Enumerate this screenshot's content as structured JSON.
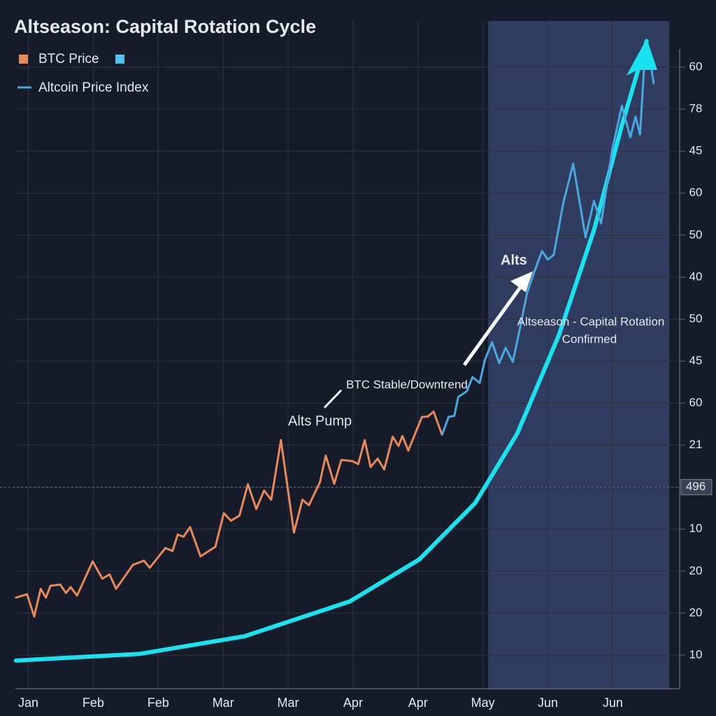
{
  "chart_data": {
    "type": "line",
    "title": "Altseason: Capital Rotation Cycle",
    "xlim": [
      -0.2,
      9.9
    ],
    "xticks": [
      {
        "value": 0,
        "label": "Jan"
      },
      {
        "value": 1,
        "label": "Feb"
      },
      {
        "value": 2,
        "label": "Feb"
      },
      {
        "value": 3,
        "label": "Mar"
      },
      {
        "value": 4,
        "label": "Mar"
      },
      {
        "value": 5,
        "label": "Apr"
      },
      {
        "value": 6,
        "label": "Apr"
      },
      {
        "value": 7,
        "label": "May"
      },
      {
        "value": 8,
        "label": "Jun"
      },
      {
        "value": 9,
        "label": "Jun"
      }
    ],
    "ylim": [
      -0.8,
      15.1
    ],
    "yticks": [
      {
        "value": 0,
        "label": "10"
      },
      {
        "value": 1,
        "label": "20"
      },
      {
        "value": 2,
        "label": "20"
      },
      {
        "value": 3,
        "label": "10"
      },
      {
        "value": 4,
        "label": "496"
      },
      {
        "value": 5,
        "label": "21"
      },
      {
        "value": 6,
        "label": "60"
      },
      {
        "value": 7,
        "label": "45"
      },
      {
        "value": 8,
        "label": "50"
      },
      {
        "value": 9,
        "label": "40"
      },
      {
        "value": 10,
        "label": "50"
      },
      {
        "value": 11,
        "label": "60"
      },
      {
        "value": 12,
        "label": "45"
      },
      {
        "value": 13,
        "label": "78"
      },
      {
        "value": 14,
        "label": "60"
      }
    ],
    "grid": true,
    "hline": 4,
    "highlight": {
      "x": [
        7.08,
        9.87
      ],
      "color": "#34426a"
    },
    "series": [
      {
        "name": "BTC Price",
        "color": "#e8895a",
        "x": [
          -0.19,
          -0.02,
          0.09,
          0.19,
          0.27,
          0.34,
          0.49,
          0.58,
          0.65,
          0.75,
          0.99,
          1.14,
          1.25,
          1.35,
          1.61,
          1.78,
          1.87,
          2.11,
          2.22,
          2.3,
          2.39,
          2.49,
          2.65,
          2.88,
          3.01,
          3.12,
          3.25,
          3.38,
          3.51,
          3.63,
          3.74,
          3.89,
          4.09,
          4.22,
          4.32,
          4.49,
          4.58,
          4.71,
          4.82,
          4.99,
          5.08,
          5.18,
          5.27,
          5.38,
          5.48,
          5.61,
          5.7,
          5.76,
          5.85,
          6.06,
          6.15,
          6.24,
          6.37
        ],
        "values": [
          1.37,
          1.45,
          0.92,
          1.58,
          1.37,
          1.65,
          1.68,
          1.48,
          1.62,
          1.42,
          2.23,
          1.82,
          1.92,
          1.58,
          2.15,
          2.25,
          2.08,
          2.55,
          2.48,
          2.87,
          2.82,
          3.05,
          2.35,
          2.58,
          3.38,
          3.2,
          3.32,
          4.07,
          3.48,
          3.92,
          3.7,
          5.12,
          2.92,
          3.7,
          3.57,
          4.12,
          4.75,
          4.08,
          4.65,
          4.62,
          4.55,
          5.12,
          4.48,
          4.68,
          4.42,
          5.2,
          4.98,
          5.22,
          4.87,
          5.67,
          5.68,
          5.8,
          5.25
        ]
      },
      {
        "name": "Altcoin Price Index",
        "color": "#4aa8e0",
        "x": [
          6.37,
          6.47,
          6.56,
          6.62,
          6.75,
          6.84,
          6.95,
          7.03,
          7.14,
          7.25,
          7.35,
          7.46,
          7.57,
          7.68,
          7.78,
          7.91,
          8.0,
          8.09,
          8.24,
          8.39,
          8.58,
          8.71,
          8.82,
          8.99,
          9.14,
          9.27,
          9.35,
          9.42,
          9.48,
          9.57,
          9.63
        ],
        "values": [
          5.25,
          5.67,
          5.7,
          6.15,
          6.28,
          6.62,
          6.48,
          7.03,
          7.45,
          6.95,
          7.32,
          6.98,
          7.78,
          8.62,
          9.08,
          9.62,
          9.42,
          9.53,
          10.78,
          11.7,
          9.95,
          10.82,
          10.28,
          12.03,
          13.08,
          12.33,
          12.82,
          12.4,
          13.95,
          14.2,
          13.62
        ]
      },
      {
        "color": "#19e3f0",
        "x": [
          -0.19,
          1.72,
          3.33,
          4.95,
          6.02,
          6.88,
          7.53,
          8.17,
          8.71,
          9.14,
          9.52
        ],
        "values": [
          -0.13,
          0.03,
          0.45,
          1.28,
          2.28,
          3.62,
          5.28,
          7.62,
          10.12,
          12.62,
          14.62
        ]
      }
    ],
    "annotations": [
      "Alts Pump",
      "BTC Stable/Downtrend",
      "Alts",
      "Altseason - Capital Rotation",
      "Confirmed"
    ]
  }
}
